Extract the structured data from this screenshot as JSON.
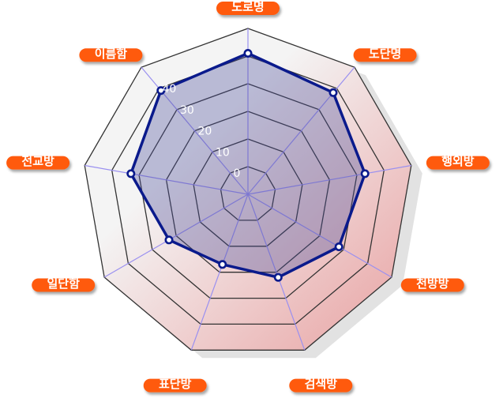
{
  "chart_data": {
    "type": "radar",
    "title": "",
    "categories": [
      "도로명",
      "도단명",
      "행외방",
      "천방방",
      "검색방",
      "표단방",
      "일단함",
      "전교방",
      "이름함"
    ],
    "series": [
      {
        "values": [
          41,
          38,
          33,
          28,
          22,
          17,
          23,
          33,
          39
        ]
      }
    ],
    "radial_ticks": [
      "0",
      "10",
      "20",
      "30",
      "40"
    ],
    "r_range": [
      -10,
      50
    ],
    "grid": true,
    "colors": {
      "series_line": "#0a1a8c",
      "series_fill": "#4a4c9a",
      "label_bg": "#ff5a10",
      "label_text": "#ffffff",
      "grid_line": "#333333",
      "spoke_line": "#9a90f0",
      "backdrop_start": "#f4f4f4",
      "backdrop_end": "#e8a0a0"
    }
  }
}
